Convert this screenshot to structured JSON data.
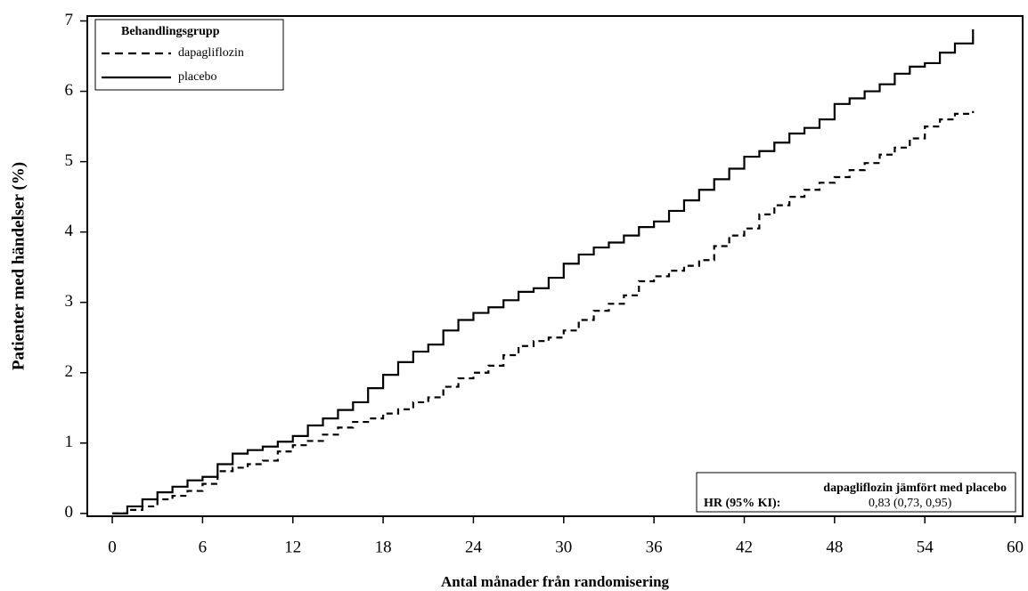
{
  "chart_data": {
    "type": "line",
    "step": true,
    "x_label": "Antal månader från randomisering",
    "y_label": "Patienter med händelser (%)",
    "xlim": [
      -1.66,
      60.5
    ],
    "ylim": [
      -0.04,
      7.07
    ],
    "xticks": [
      0,
      6,
      12,
      18,
      24,
      30,
      36,
      42,
      48,
      54,
      60
    ],
    "yticks": [
      0,
      1,
      2,
      3,
      4,
      5,
      6,
      7
    ],
    "legend_title": "Behandlingsgrupp",
    "legend_position": "top-left",
    "series": [
      {
        "name": "dapagliflozin",
        "color": "#000000",
        "dash": true,
        "x": [
          0,
          1,
          2,
          3,
          4,
          5,
          6,
          7,
          8,
          9,
          10,
          11,
          12,
          13,
          14,
          15,
          16,
          17,
          18,
          19,
          20,
          21,
          22,
          23,
          24,
          25,
          26,
          27,
          28,
          29,
          30,
          31,
          32,
          33,
          34,
          35,
          36,
          37,
          38,
          39,
          40,
          41,
          42,
          43,
          44,
          45,
          46,
          47,
          48,
          49,
          50,
          51,
          52,
          53,
          54,
          55,
          56,
          57.2
        ],
        "values": [
          0,
          0.05,
          0.1,
          0.2,
          0.25,
          0.32,
          0.42,
          0.6,
          0.65,
          0.7,
          0.75,
          0.88,
          0.97,
          1.03,
          1.12,
          1.22,
          1.3,
          1.35,
          1.42,
          1.48,
          1.58,
          1.65,
          1.8,
          1.92,
          2.0,
          2.1,
          2.25,
          2.38,
          2.45,
          2.5,
          2.6,
          2.75,
          2.88,
          2.98,
          3.1,
          3.3,
          3.37,
          3.45,
          3.52,
          3.6,
          3.8,
          3.95,
          4.05,
          4.25,
          4.38,
          4.5,
          4.6,
          4.7,
          4.78,
          4.88,
          4.98,
          5.1,
          5.2,
          5.33,
          5.5,
          5.6,
          5.68,
          5.72
        ]
      },
      {
        "name": "placebo",
        "color": "#000000",
        "dash": false,
        "x": [
          0,
          1,
          2,
          3,
          4,
          5,
          6,
          7,
          8,
          9,
          10,
          11,
          12,
          13,
          14,
          15,
          16,
          17,
          18,
          19,
          20,
          21,
          22,
          23,
          24,
          25,
          26,
          27,
          28,
          29,
          30,
          31,
          32,
          33,
          34,
          35,
          36,
          37,
          38,
          39,
          40,
          41,
          42,
          43,
          44,
          45,
          46,
          47,
          48,
          49,
          50,
          51,
          52,
          53,
          54,
          55,
          56,
          57.2
        ],
        "values": [
          0,
          0.1,
          0.2,
          0.3,
          0.38,
          0.47,
          0.52,
          0.7,
          0.85,
          0.9,
          0.95,
          1.02,
          1.1,
          1.25,
          1.35,
          1.47,
          1.58,
          1.78,
          1.97,
          2.15,
          2.3,
          2.4,
          2.6,
          2.75,
          2.85,
          2.93,
          3.03,
          3.15,
          3.2,
          3.35,
          3.55,
          3.68,
          3.78,
          3.85,
          3.95,
          4.07,
          4.15,
          4.3,
          4.45,
          4.6,
          4.75,
          4.9,
          5.07,
          5.15,
          5.27,
          5.4,
          5.48,
          5.6,
          5.82,
          5.9,
          6.0,
          6.1,
          6.25,
          6.35,
          6.4,
          6.55,
          6.68,
          6.88
        ]
      }
    ],
    "annotation": {
      "title": "dapagliflozin jämfört med placebo",
      "label": "HR (95% KI):",
      "value": "0,83 (0,73, 0,95)"
    }
  }
}
